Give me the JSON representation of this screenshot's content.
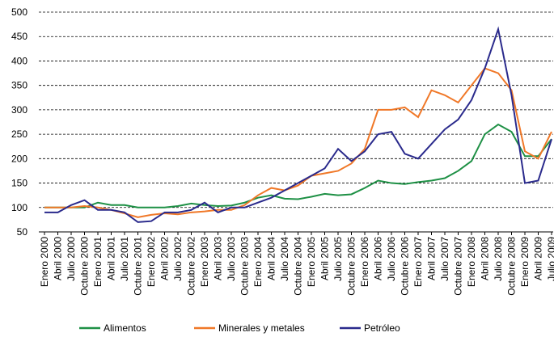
{
  "chart_data": {
    "type": "line",
    "categories": [
      "Enero 2000",
      "Abril 2000",
      "Julio 2000",
      "Octubre 2000",
      "Enero 2001",
      "Abril 2001",
      "Julio 2001",
      "Octubre 2001",
      "Enero 2002",
      "Abril 2002",
      "Julio 2002",
      "Octubre 2002",
      "Enero 2003",
      "Abril 2003",
      "Julio 2003",
      "Octubre 2003",
      "Enero 2004",
      "Abril 2004",
      "Julio 2004",
      "Octubre 2004",
      "Enero 2005",
      "Abril 2005",
      "Julio 2005",
      "Octubre 2005",
      "Enero 2006",
      "Abril 2006",
      "Julio 2006",
      "Octubre 2006",
      "Enero 2007",
      "Abril 2007",
      "Julio 2007",
      "Octubre 2007",
      "Enero 2008",
      "Abril 2008",
      "Julio 2008",
      "Octubre 2008",
      "Enero 2009",
      "Abril 2009",
      "Julio 2009"
    ],
    "series": [
      {
        "name": "Alimentos",
        "color": "#1e9045",
        "values": [
          100,
          100,
          100,
          100,
          110,
          105,
          105,
          100,
          100,
          100,
          103,
          108,
          105,
          103,
          104,
          110,
          120,
          125,
          118,
          117,
          122,
          128,
          125,
          127,
          140,
          155,
          150,
          148,
          152,
          155,
          160,
          175,
          195,
          250,
          270,
          255,
          205,
          205,
          240
        ]
      },
      {
        "name": "Minerales y metales",
        "color": "#f07828",
        "values": [
          100,
          100,
          100,
          103,
          100,
          95,
          88,
          80,
          85,
          88,
          86,
          90,
          92,
          95,
          95,
          105,
          125,
          140,
          135,
          145,
          165,
          170,
          175,
          190,
          220,
          300,
          300,
          305,
          285,
          340,
          330,
          315,
          350,
          385,
          375,
          340,
          215,
          200,
          255
        ]
      },
      {
        "name": "Petróleo",
        "color": "#2a2a8c",
        "values": [
          90,
          90,
          105,
          115,
          95,
          95,
          90,
          70,
          72,
          90,
          90,
          95,
          110,
          90,
          100,
          100,
          110,
          120,
          135,
          150,
          165,
          180,
          220,
          195,
          215,
          250,
          255,
          210,
          200,
          230,
          260,
          280,
          320,
          385,
          465,
          330,
          150,
          155,
          240
        ]
      }
    ],
    "ylim": [
      50,
      500
    ],
    "yticks": [
      50,
      100,
      150,
      200,
      250,
      300,
      350,
      400,
      450,
      500
    ],
    "grid": true,
    "legend": "bottom"
  }
}
